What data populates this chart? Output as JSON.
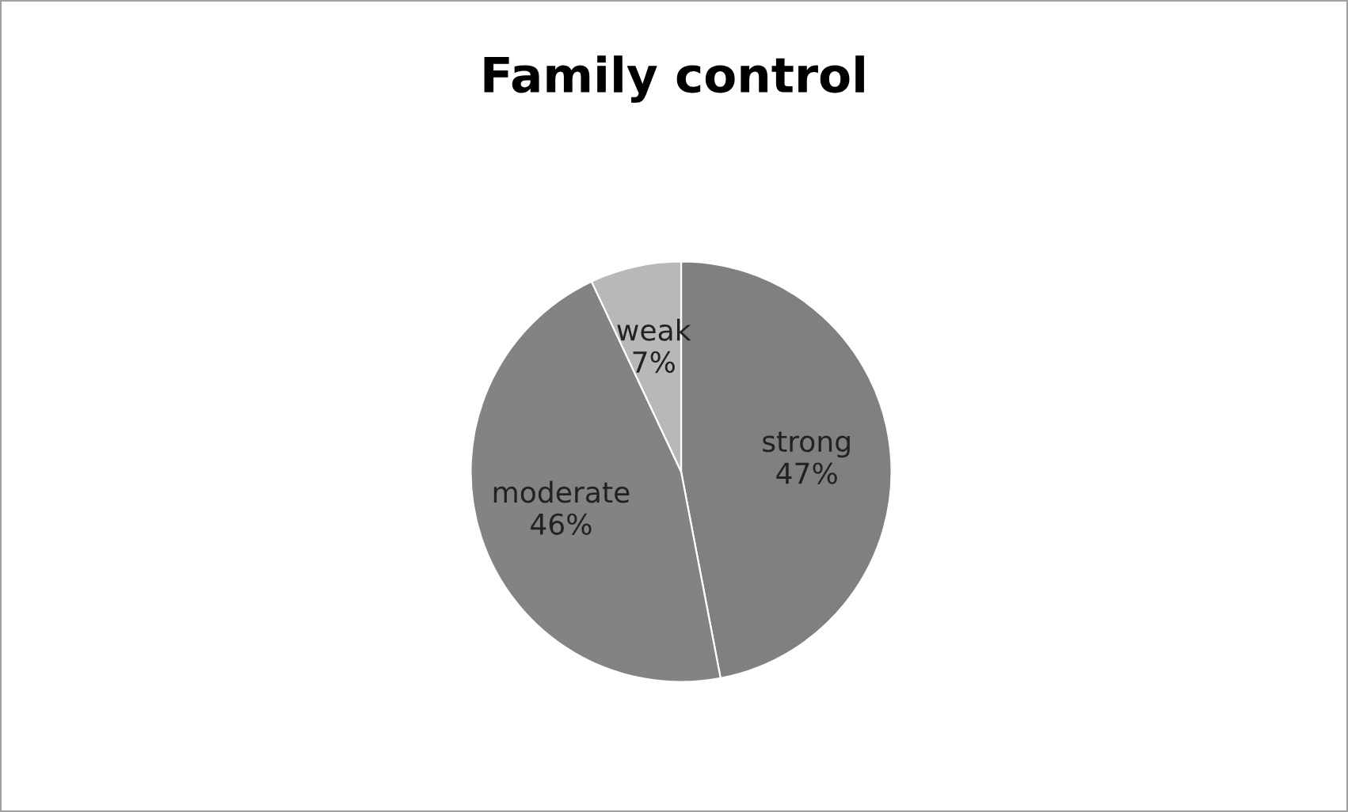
{
  "chart_data": {
    "type": "pie",
    "title": "Family control",
    "categories": [
      "strong",
      "moderate",
      "weak"
    ],
    "values": [
      47,
      46,
      7
    ],
    "value_labels": [
      "47%",
      "46%",
      "7%"
    ],
    "colors": [
      "#808080",
      "#838383",
      "#b8b8b8"
    ],
    "legend": false
  }
}
